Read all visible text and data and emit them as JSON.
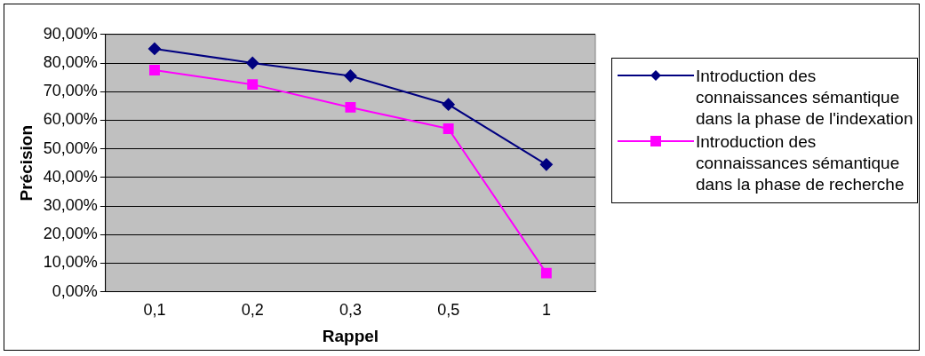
{
  "chart_data": {
    "type": "line",
    "xlabel": "Rappel",
    "ylabel": "Précision",
    "categories": [
      "0,1",
      "0,2",
      "0,3",
      "0,5",
      "1"
    ],
    "series": [
      {
        "name": "Introduction des connaissances sémantique dans la phase de l'indexation",
        "color": "#000080",
        "marker": "diamond",
        "values": [
          85,
          80,
          75.5,
          65.5,
          44.5
        ]
      },
      {
        "name": "Introduction des connaissances sémantique dans la phase de recherche",
        "color": "#ff00ff",
        "marker": "square",
        "values": [
          77.5,
          72.5,
          64.5,
          57,
          6.5
        ]
      }
    ],
    "ylim": [
      0,
      90
    ],
    "yticks": [
      {
        "value": 0,
        "label": "0,00%"
      },
      {
        "value": 10,
        "label": "10,00%"
      },
      {
        "value": 20,
        "label": "20,00%"
      },
      {
        "value": 30,
        "label": "30,00%"
      },
      {
        "value": 40,
        "label": "40,00%"
      },
      {
        "value": 50,
        "label": "50,00%"
      },
      {
        "value": 60,
        "label": "60,00%"
      },
      {
        "value": 70,
        "label": "70,00%"
      },
      {
        "value": 80,
        "label": "80,00%"
      },
      {
        "value": 90,
        "label": "90,00%"
      }
    ],
    "grid": "y",
    "legend": "right",
    "line_style": "solid"
  }
}
